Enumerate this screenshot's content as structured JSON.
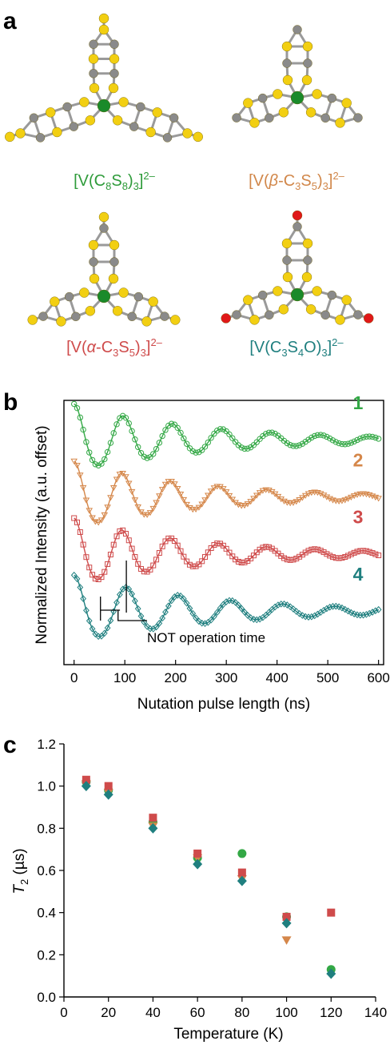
{
  "panel_a": {
    "letter": "a",
    "molecules": [
      {
        "main": "[V(C",
        "s1": "8",
        "mid1": "S",
        "s2": "8",
        "mid2": ")",
        "s3": "3",
        "close": "]",
        "sup": "2–",
        "color": "#2e9b3a"
      },
      {
        "main": "[V(",
        "italic": "β",
        "mid0": "-C",
        "s1": "3",
        "mid1": "S",
        "s2": "5",
        "mid2": ")",
        "s3": "3",
        "close": "]",
        "sup": "2–",
        "color": "#d1874a"
      },
      {
        "main": "[V(",
        "italic": "α",
        "mid0": "-C",
        "s1": "3",
        "mid1": "S",
        "s2": "5",
        "mid2": ")",
        "s3": "3",
        "close": "]",
        "sup": "2–",
        "color": "#cf4b4b"
      },
      {
        "main": "[V(C",
        "s1": "3",
        "mid1": "S",
        "s2": "4",
        "mid2": "O)",
        "s3": "3",
        "close": "]",
        "sup": "2–",
        "color": "#1f7f7f"
      }
    ],
    "atom_colors": {
      "S": "#f2cf12",
      "C": "#8a8a8a",
      "V": "#1a8a2a",
      "O": "#e01818",
      "bond": "#9a9a9a"
    }
  },
  "panel_b": {
    "letter": "b",
    "ylabel": "Normalized Intensity (a.u. offset)",
    "xlabel": "Nutation pulse length (ns)",
    "annotation": "NOT operation time",
    "chart_data": {
      "type": "line",
      "xlim": [
        -20,
        610
      ],
      "xticks": [
        "0",
        "100",
        "200",
        "300",
        "400",
        "500",
        "600"
      ],
      "series": [
        {
          "name": "1",
          "color": "#33a845",
          "marker": "circle",
          "offset": 3.0,
          "period": 97,
          "decay": 260,
          "amp": 0.55
        },
        {
          "name": "2",
          "color": "#d5874a",
          "marker": "triangle",
          "offset": 2.05,
          "period": 95,
          "decay": 250,
          "amp": 0.55
        },
        {
          "name": "3",
          "color": "#cf4b4b",
          "marker": "square",
          "offset": 1.1,
          "period": 95,
          "decay": 250,
          "amp": 0.55
        },
        {
          "name": "4",
          "color": "#1f7f7f",
          "marker": "diamond",
          "offset": 0.15,
          "period": 103,
          "decay": 270,
          "amp": 0.55
        }
      ]
    }
  },
  "panel_c": {
    "letter": "c",
    "ylabel_italic": "T",
    "ylabel_sub": "2",
    "ylabel_rest": " (µs)",
    "xlabel": "Temperature (K)",
    "chart_data": {
      "type": "scatter",
      "xlim": [
        0,
        140
      ],
      "ylim": [
        0.0,
        1.2
      ],
      "xticks": [
        "0",
        "20",
        "40",
        "60",
        "80",
        "100",
        "120",
        "140"
      ],
      "yticks": [
        "0.0",
        "0.2",
        "0.4",
        "0.6",
        "0.8",
        "1.0",
        "1.2"
      ],
      "series": [
        {
          "marker": "circle",
          "color": "#33a845",
          "x": [
            10,
            20,
            40,
            60,
            80,
            100,
            120
          ],
          "y": [
            1.02,
            0.98,
            0.83,
            0.66,
            0.68,
            0.38,
            0.13
          ]
        },
        {
          "marker": "triangle",
          "color": "#d5874a",
          "x": [
            10,
            20,
            40,
            60,
            80,
            100
          ],
          "y": [
            1.01,
            0.97,
            0.81,
            0.66,
            0.56,
            0.27
          ]
        },
        {
          "marker": "square",
          "color": "#cf4b4b",
          "x": [
            10,
            20,
            40,
            60,
            80,
            100,
            120
          ],
          "y": [
            1.03,
            1.0,
            0.85,
            0.68,
            0.59,
            0.38,
            0.4
          ]
        },
        {
          "marker": "diamond",
          "color": "#1f7f7f",
          "x": [
            10,
            20,
            40,
            60,
            80,
            100,
            120
          ],
          "y": [
            1.0,
            0.96,
            0.8,
            0.63,
            0.55,
            0.35,
            0.11
          ]
        }
      ]
    }
  }
}
